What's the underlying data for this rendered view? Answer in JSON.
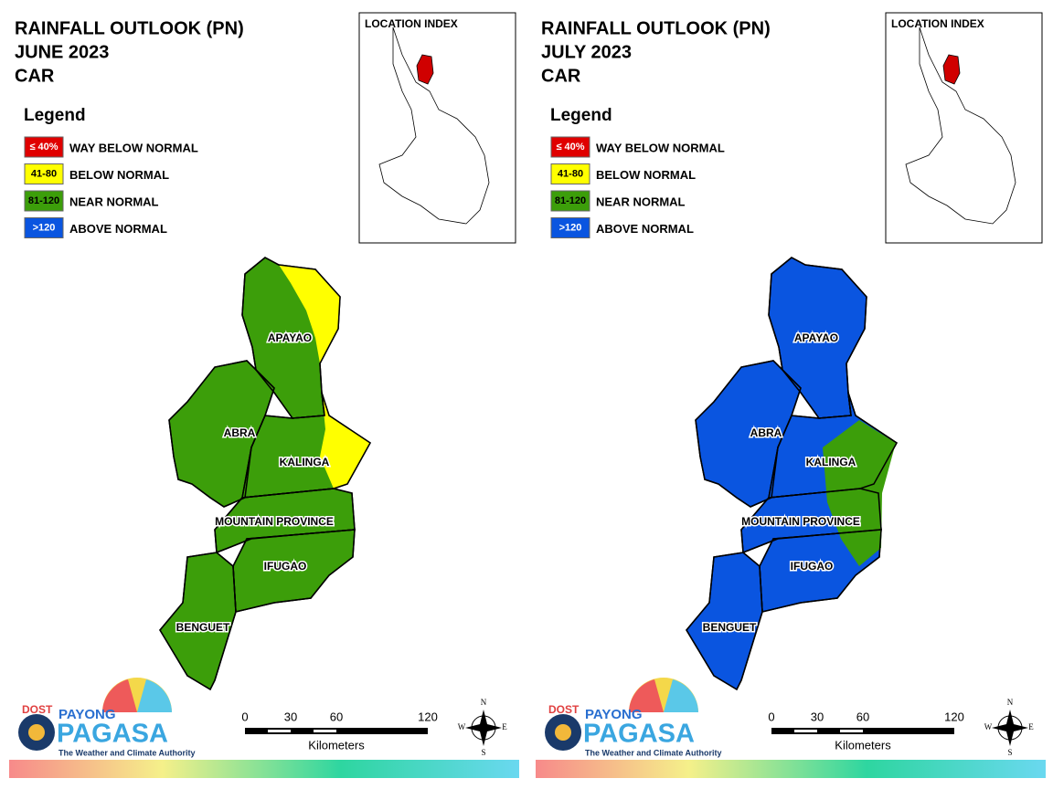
{
  "panels": [
    {
      "title": [
        "RAINFALL OUTLOOK (PN)",
        "JUNE 2023",
        "CAR"
      ],
      "legend": {
        "title": "Legend",
        "items": [
          {
            "range": "≤ 40%",
            "label": "WAY BELOW NORMAL",
            "color": "#e00000",
            "text_color": "#ffffff"
          },
          {
            "range": "41-80",
            "label": "BELOW NORMAL",
            "color": "#ffff00",
            "text_color": "#000000"
          },
          {
            "range": "81-120",
            "label": "NEAR NORMAL",
            "color": "#3c9e0a",
            "text_color": "#000000"
          },
          {
            "range": ">120",
            "label": "ABOVE NORMAL",
            "color": "#0a55e0",
            "text_color": "#ffffff"
          }
        ]
      },
      "location_index": "LOCATION INDEX",
      "provinces": [
        "APAYAO",
        "ABRA",
        "KALINGA",
        "MOUNTAIN PROVINCE",
        "IFUGAO",
        "BENGUET"
      ],
      "scale": {
        "ticks": [
          0,
          30,
          60,
          120
        ],
        "unit": "Kilometers"
      },
      "compass": [
        "N",
        "E",
        "S",
        "W"
      ],
      "logo": {
        "agency": "DOST",
        "name_top": "PAYONG",
        "name": "PAGASA",
        "tagline": "The Weather and Climate Authority"
      }
    },
    {
      "title": [
        "RAINFALL OUTLOOK (PN)",
        "JULY 2023",
        "CAR"
      ],
      "legend": {
        "title": "Legend",
        "items": [
          {
            "range": "≤ 40%",
            "label": "WAY BELOW NORMAL",
            "color": "#e00000",
            "text_color": "#ffffff"
          },
          {
            "range": "41-80",
            "label": "BELOW NORMAL",
            "color": "#ffff00",
            "text_color": "#000000"
          },
          {
            "range": "81-120",
            "label": "NEAR NORMAL",
            "color": "#3c9e0a",
            "text_color": "#000000"
          },
          {
            "range": ">120",
            "label": "ABOVE NORMAL",
            "color": "#0a55e0",
            "text_color": "#ffffff"
          }
        ]
      },
      "location_index": "LOCATION INDEX",
      "provinces": [
        "APAYAO",
        "ABRA",
        "KALINGA",
        "MOUNTAIN PROVINCE",
        "IFUGAO",
        "BENGUET"
      ],
      "scale": {
        "ticks": [
          0,
          30,
          60,
          120
        ],
        "unit": "Kilometers"
      },
      "compass": [
        "N",
        "E",
        "S",
        "W"
      ],
      "logo": {
        "agency": "DOST",
        "name_top": "PAYONG",
        "name": "PAGASA",
        "tagline": "The Weather and Climate Authority"
      }
    }
  ]
}
